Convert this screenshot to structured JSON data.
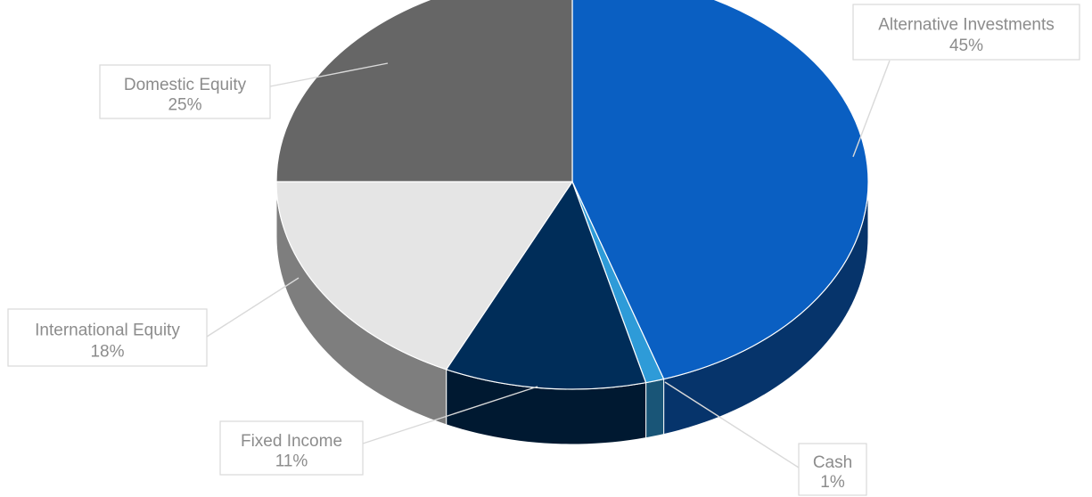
{
  "chart_data": {
    "type": "pie",
    "title": "",
    "colors": {
      "Alternative Investments": "#0a5fc2",
      "Cash": "#2e9bd8",
      "Fixed Income": "#002d59",
      "International Equity": "#e5e5e5",
      "Domestic Equity": "#666666"
    },
    "slices": [
      {
        "name": "Alternative Investments",
        "value": 45,
        "label": "Alternative Investments",
        "pct_label": "45%"
      },
      {
        "name": "Cash",
        "value": 1,
        "label": "Cash",
        "pct_label": "1%"
      },
      {
        "name": "Fixed Income",
        "value": 11,
        "label": "Fixed Income",
        "pct_label": "11%"
      },
      {
        "name": "International Equity",
        "value": 18,
        "label": "International Equity",
        "pct_label": "18%"
      },
      {
        "name": "Domestic Equity",
        "value": 25,
        "label": "Domestic Equity",
        "pct_label": "25%"
      }
    ]
  }
}
